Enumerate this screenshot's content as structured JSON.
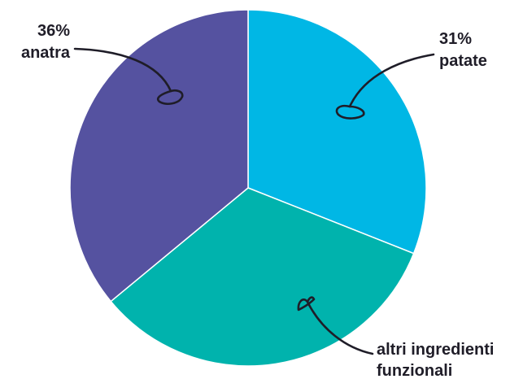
{
  "chart_data": {
    "type": "pie",
    "slices": [
      {
        "label": "patate",
        "value": 31,
        "value_text": "31%",
        "color": "#00b7e5"
      },
      {
        "label": "altri ingredienti funzionali",
        "value": 33,
        "value_text": "",
        "color": "#00b3ad"
      },
      {
        "label": "anatra",
        "value": 36,
        "value_text": "36%",
        "color": "#5552a0"
      }
    ],
    "start_angle_deg": 0,
    "direction": "clockwise",
    "slice_border_color": "#ffffff",
    "label_color": "#1f1d28"
  }
}
